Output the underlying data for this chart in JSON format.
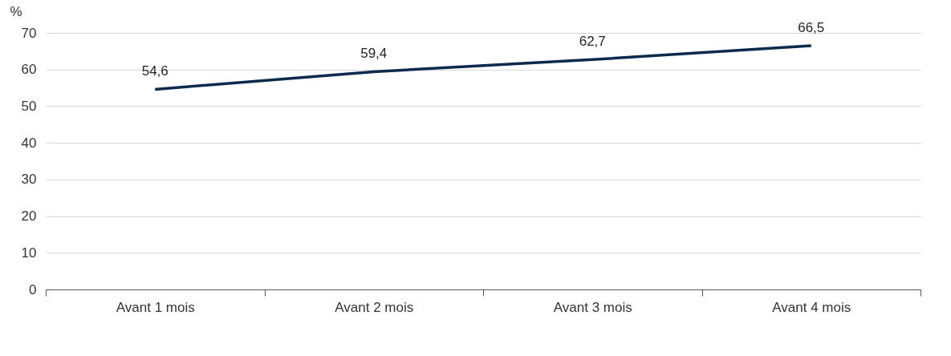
{
  "chart_data": {
    "type": "line",
    "ylabel": "%",
    "categories": [
      "Avant 1 mois",
      "Avant 2 mois",
      "Avant 3 mois",
      "Avant 4 mois"
    ],
    "series": [
      {
        "color": "#0b2a4e",
        "values": [
          54.6,
          59.4,
          62.7,
          66.5
        ],
        "value_labels": [
          "54,6",
          "59,4",
          "62,7",
          "66,5"
        ]
      }
    ],
    "ylim": [
      0,
      70
    ],
    "yticks": [
      0,
      10,
      20,
      30,
      40,
      50,
      60,
      70
    ],
    "grid": "y",
    "legend": false,
    "marker": "none",
    "line_style": "solid"
  }
}
